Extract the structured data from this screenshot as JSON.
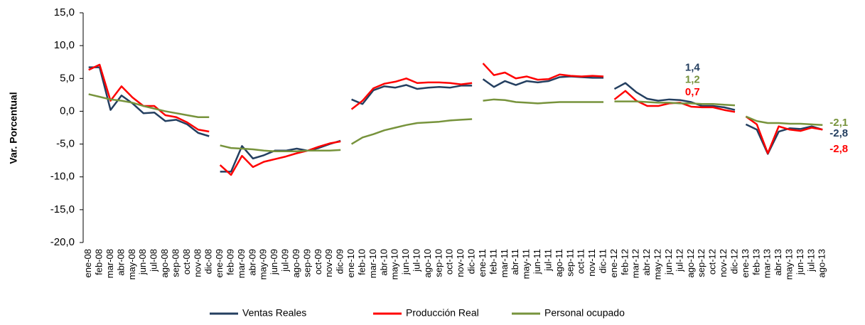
{
  "chart_data": {
    "type": "line",
    "ylabel": "Var. Porcentual",
    "categories": [
      "ene-08",
      "feb-08",
      "mar-08",
      "abr-08",
      "may-08",
      "jun-08",
      "jul-08",
      "ago-08",
      "sep-08",
      "oct-08",
      "nov-08",
      "dic-08",
      "ene-09",
      "feb-09",
      "mar-09",
      "abr-09",
      "may-09",
      "jun-09",
      "jul-09",
      "ago-09",
      "sep-09",
      "oct-09",
      "nov-09",
      "dic-09",
      "ene-10",
      "feb-10",
      "mar-10",
      "abr-10",
      "may-10",
      "jun-10",
      "jul-10",
      "ago-10",
      "sep-10",
      "oct-10",
      "nov-10",
      "dic-10",
      "ene-11",
      "feb-11",
      "mar-11",
      "abr-11",
      "may-11",
      "jun-11",
      "jul-11",
      "ago-11",
      "sep-11",
      "oct-11",
      "nov-11",
      "dic-11",
      "ene-12",
      "feb-12",
      "mar-12",
      "abr-12",
      "may-12",
      "jun-12",
      "jul-12",
      "ago-12",
      "sep-12",
      "oct-12",
      "nov-12",
      "dic-12",
      "ene-13",
      "feb-13",
      "mar-13",
      "abr-13",
      "may-13",
      "jun-13",
      "jul-13",
      "ago-13"
    ],
    "series": [
      {
        "name": "Ventas Reales",
        "color": "#243f60",
        "values": [
          6.7,
          6.7,
          0.2,
          2.4,
          1.2,
          -0.3,
          -0.2,
          -1.5,
          -1.3,
          -2.0,
          -3.3,
          -3.8,
          -9.2,
          -9.2,
          -5.3,
          -7.2,
          -6.7,
          -6.0,
          -6.0,
          -5.7,
          -6.0,
          -5.6,
          -5.0,
          -4.5,
          1.8,
          1.1,
          3.2,
          3.8,
          3.6,
          4.0,
          3.4,
          3.6,
          3.7,
          3.6,
          3.9,
          3.9,
          4.9,
          3.7,
          4.6,
          4.0,
          4.6,
          4.4,
          4.6,
          5.2,
          5.3,
          5.2,
          5.1,
          5.1,
          3.4,
          4.3,
          2.9,
          1.9,
          1.6,
          1.8,
          1.7,
          1.4,
          0.8,
          0.8,
          0.6,
          0.2,
          -2.0,
          -2.8,
          -6.5,
          -3.1,
          -2.6,
          -2.7,
          -2.3,
          -2.8
        ],
        "value_labels": [
          null,
          null,
          null,
          null,
          null,
          null,
          null,
          null,
          null,
          null,
          null,
          null,
          null,
          null,
          null,
          null,
          null,
          null,
          null,
          null,
          null,
          null,
          null,
          null,
          null,
          null,
          null,
          null,
          null,
          null,
          null,
          null,
          null,
          null,
          null,
          null,
          null,
          null,
          null,
          null,
          null,
          null,
          null,
          null,
          null,
          null,
          null,
          null,
          null,
          null,
          null,
          null,
          null,
          null,
          null,
          "1,4",
          null,
          null,
          null,
          null,
          null,
          null,
          null,
          null,
          null,
          null,
          null,
          "-2,8"
        ]
      },
      {
        "name": "Producción Real",
        "color": "#ff0000",
        "values": [
          6.3,
          7.1,
          1.6,
          3.8,
          2.1,
          0.8,
          0.8,
          -0.6,
          -0.9,
          -1.7,
          -2.8,
          -3.1,
          -8.2,
          -9.7,
          -6.8,
          -8.5,
          -7.7,
          -7.3,
          -6.9,
          -6.4,
          -6.0,
          -5.4,
          -4.9,
          -4.6,
          0.3,
          1.6,
          3.5,
          4.2,
          4.5,
          5.0,
          4.3,
          4.4,
          4.4,
          4.3,
          4.1,
          4.3,
          7.3,
          5.5,
          5.9,
          5.0,
          5.3,
          4.8,
          4.9,
          5.6,
          5.4,
          5.3,
          5.4,
          5.3,
          1.8,
          3.1,
          1.6,
          0.8,
          0.8,
          1.2,
          1.3,
          0.7,
          0.6,
          0.6,
          0.2,
          -0.1,
          -0.8,
          -2.0,
          -6.4,
          -2.3,
          -2.8,
          -3.0,
          -2.5,
          -2.8
        ],
        "value_labels": [
          null,
          null,
          null,
          null,
          null,
          null,
          null,
          null,
          null,
          null,
          null,
          null,
          null,
          null,
          null,
          null,
          null,
          null,
          null,
          null,
          null,
          null,
          null,
          null,
          null,
          null,
          null,
          null,
          null,
          null,
          null,
          null,
          null,
          null,
          null,
          null,
          null,
          null,
          null,
          null,
          null,
          null,
          null,
          null,
          null,
          null,
          null,
          null,
          null,
          null,
          null,
          null,
          null,
          null,
          null,
          "0,7",
          null,
          null,
          null,
          null,
          null,
          null,
          null,
          null,
          null,
          null,
          null,
          "-2,8"
        ]
      },
      {
        "name": "Personal ocupado",
        "color": "#77933c",
        "values": [
          2.6,
          2.2,
          1.8,
          1.6,
          1.3,
          0.8,
          0.4,
          0.0,
          -0.3,
          -0.6,
          -0.9,
          -0.9,
          -5.2,
          -5.6,
          -5.7,
          -5.8,
          -6.0,
          -6.1,
          -6.1,
          -6.1,
          -6.0,
          -6.0,
          -6.0,
          -5.9,
          -5.0,
          -4.0,
          -3.5,
          -2.9,
          -2.5,
          -2.1,
          -1.8,
          -1.7,
          -1.6,
          -1.4,
          -1.3,
          -1.2,
          1.6,
          1.8,
          1.7,
          1.4,
          1.3,
          1.2,
          1.3,
          1.4,
          1.4,
          1.4,
          1.4,
          1.4,
          1.5,
          1.5,
          1.5,
          1.4,
          1.3,
          1.3,
          1.2,
          1.2,
          1.1,
          1.1,
          1.0,
          0.9,
          -0.8,
          -1.5,
          -1.8,
          -1.8,
          -1.9,
          -1.9,
          -2.0,
          -2.1
        ],
        "value_labels": [
          null,
          null,
          null,
          null,
          null,
          null,
          null,
          null,
          null,
          null,
          null,
          null,
          null,
          null,
          null,
          null,
          null,
          null,
          null,
          null,
          null,
          null,
          null,
          null,
          null,
          null,
          null,
          null,
          null,
          null,
          null,
          null,
          null,
          null,
          null,
          null,
          null,
          null,
          null,
          null,
          null,
          null,
          null,
          null,
          null,
          null,
          null,
          null,
          null,
          null,
          null,
          null,
          null,
          null,
          null,
          "1,2",
          null,
          null,
          null,
          null,
          null,
          null,
          null,
          null,
          null,
          null,
          null,
          "-2,1"
        ]
      }
    ],
    "ylim": [
      -20,
      15
    ],
    "yticks": [
      {
        "value": -20,
        "label": "-20,0"
      },
      {
        "value": -15,
        "label": "-15,0"
      },
      {
        "value": -10,
        "label": "-10,0"
      },
      {
        "value": -5,
        "label": "-5,0"
      },
      {
        "value": 0,
        "label": "0,0"
      },
      {
        "value": 5,
        "label": "5,0"
      },
      {
        "value": 10,
        "label": "10,0"
      },
      {
        "value": 15,
        "label": "15,0"
      }
    ],
    "legend": "bottom"
  }
}
